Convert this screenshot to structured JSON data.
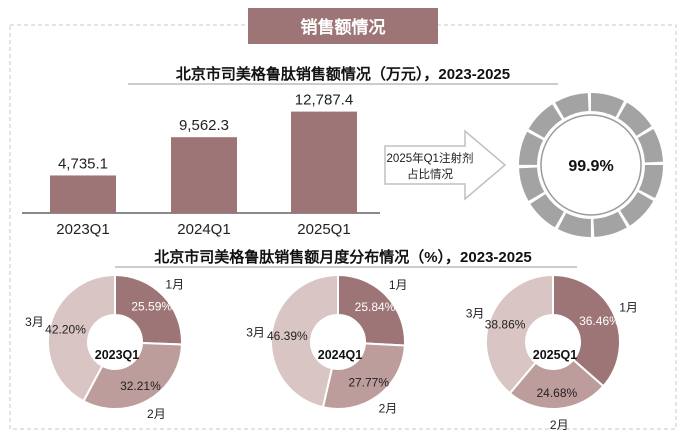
{
  "section_title": "销售额情况",
  "bar_chart": {
    "chart_data": {
      "type": "bar",
      "title": "北京市司美格鲁肽销售额情况（万元），2023-2025",
      "categories": [
        "2023Q1",
        "2024Q1",
        "2025Q1"
      ],
      "values": [
        4735.1,
        9562.3,
        12787.4
      ],
      "value_labels": [
        "4,735.1",
        "9,562.3",
        "12,787.4"
      ],
      "ylim": [
        0,
        14000
      ],
      "grid": false,
      "bar_color": "#9e7576"
    }
  },
  "arrow_text": {
    "line1": "2025年Q1注射剂",
    "line2": "占比情况"
  },
  "gauge": {
    "chart_data": {
      "type": "pie",
      "label": "99.9%",
      "value": 99.9,
      "color": "#a3a3a3"
    }
  },
  "monthly": {
    "title": "北京市司美格鲁肽销售额月度分布情况（%），2023-2025",
    "chart_data": [
      {
        "type": "pie",
        "center_label": "2023Q1",
        "slices": [
          {
            "name": "1月",
            "value": 25.59,
            "label": "25.59%"
          },
          {
            "name": "2月",
            "value": 32.21,
            "label": "32.21%"
          },
          {
            "name": "3月",
            "value": 42.2,
            "label": "42.20%"
          }
        ]
      },
      {
        "type": "pie",
        "center_label": "2024Q1",
        "slices": [
          {
            "name": "1月",
            "value": 25.84,
            "label": "25.84%"
          },
          {
            "name": "2月",
            "value": 27.77,
            "label": "27.77%"
          },
          {
            "name": "3月",
            "value": 46.39,
            "label": "46.39%"
          }
        ]
      },
      {
        "type": "pie",
        "center_label": "2025Q1",
        "slices": [
          {
            "name": "1月",
            "value": 36.46,
            "label": "36.46%"
          },
          {
            "name": "2月",
            "value": 24.68,
            "label": "24.68%"
          },
          {
            "name": "3月",
            "value": 38.86,
            "label": "38.86%"
          }
        ]
      }
    ],
    "colors": [
      "#9e7576",
      "#bd9d9c",
      "#d9c5c4"
    ]
  }
}
